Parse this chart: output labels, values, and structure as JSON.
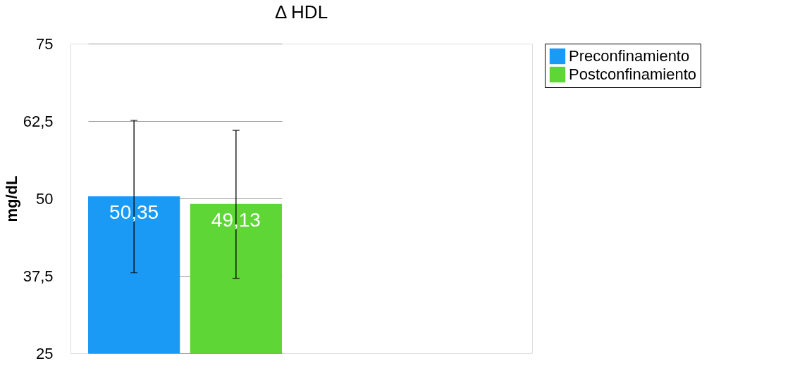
{
  "chart_data": {
    "type": "bar",
    "title": "Δ HDL",
    "ylabel": "mg/dL",
    "categories": [
      null
    ],
    "series": [
      {
        "name": "Preconfinamiento",
        "color": "#1a9af5",
        "values": [
          50.35
        ],
        "value_labels": [
          "50,35"
        ],
        "errors": [
          [
            38.0,
            62.6
          ]
        ]
      },
      {
        "name": "Postconfinamiento",
        "color": "#5dd636",
        "values": [
          49.13
        ],
        "value_labels": [
          "49,13"
        ],
        "errors": [
          [
            37.1,
            61.0
          ]
        ]
      }
    ],
    "ylim": [
      25,
      75
    ],
    "yticks": [
      25,
      {
        "value": 37.5,
        "label": "37,5"
      },
      50,
      {
        "value": 62.5,
        "label": "62,5"
      },
      75
    ],
    "grid": "y",
    "legend": "top right"
  }
}
